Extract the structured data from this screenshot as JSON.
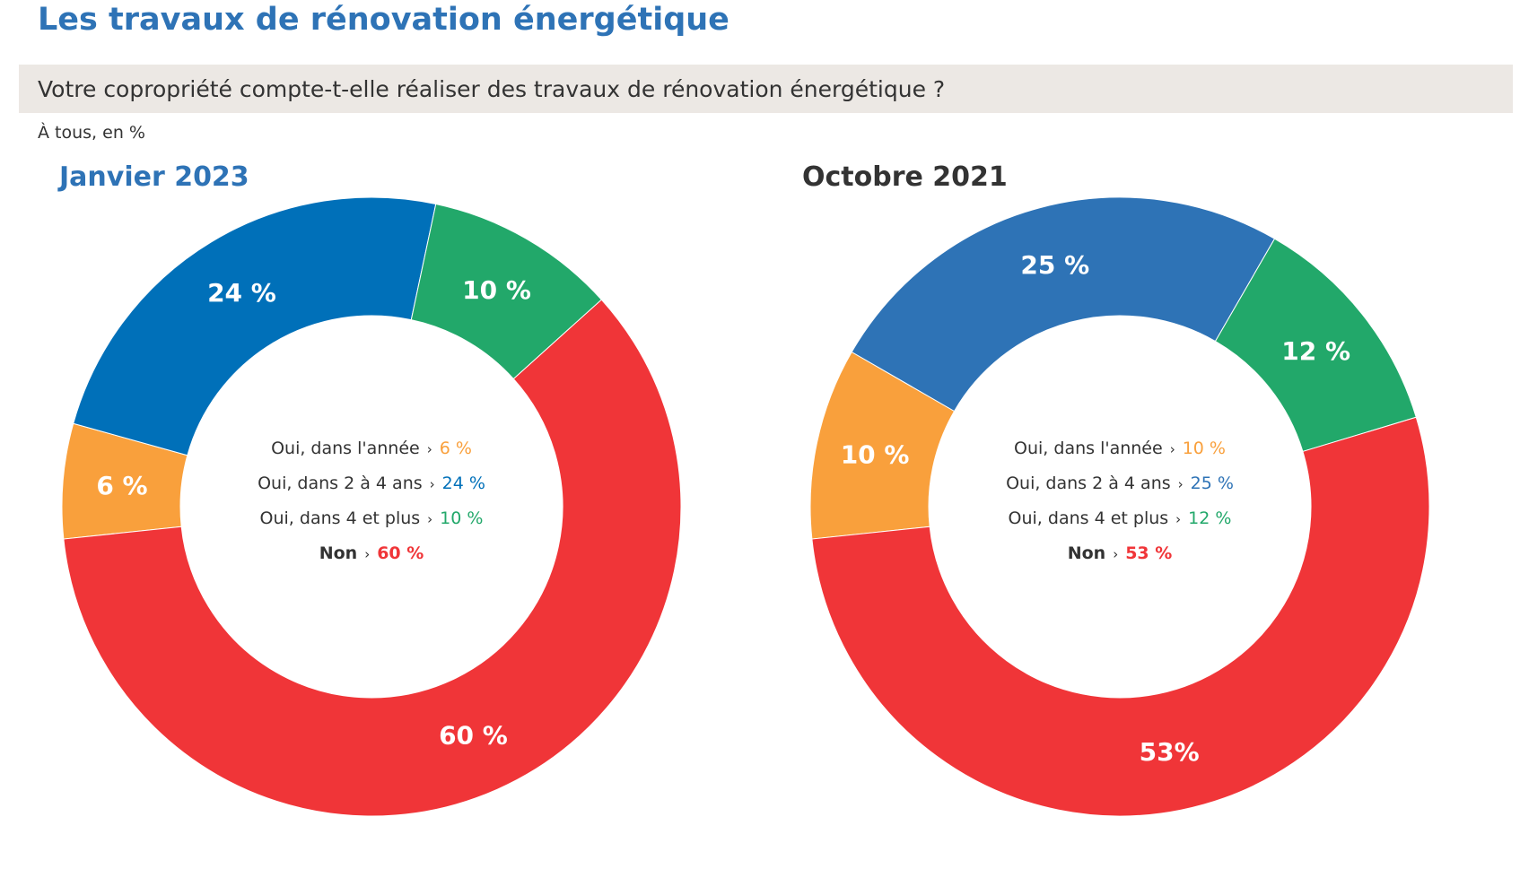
{
  "title": "Les travaux de rénovation énergétique",
  "question": "Votre copropriété compte-t-elle réaliser des travaux de rénovation énergétique ?",
  "base_note": "À tous, en %",
  "separator": "›",
  "colors": {
    "title": "#2e73b6",
    "question_bg": "#ece8e4",
    "annee": "#f9a03c",
    "deux_quatre_2023": "#0070b9",
    "deux_quatre_2021": "#2e73b6",
    "quatre_plus": "#22a86a",
    "non": "#f03538"
  },
  "chart_data": [
    {
      "type": "pie",
      "title": "Janvier 2023",
      "categories": [
        "Oui, dans l'année",
        "Oui, dans 2 à 4 ans",
        "Oui, dans 4 et plus",
        "Non"
      ],
      "values": [
        6,
        24,
        10,
        60
      ],
      "slice_labels": [
        "6 %",
        "24 %",
        "10 %",
        "60 %"
      ],
      "legend_values": [
        "6 %",
        "24 %",
        "10 %",
        "60 %"
      ],
      "colors": [
        "#f9a03c",
        "#0070b9",
        "#22a86a",
        "#f03538"
      ],
      "donut": true
    },
    {
      "type": "pie",
      "title": "Octobre 2021",
      "categories": [
        "Oui, dans l'année",
        "Oui, dans 2 à 4 ans",
        "Oui, dans 4 et plus",
        "Non"
      ],
      "values": [
        10,
        25,
        12,
        53
      ],
      "slice_labels": [
        "10 %",
        "25 %",
        "12 %",
        "53%"
      ],
      "legend_values": [
        "10 %",
        "25 %",
        "12 %",
        "53 %"
      ],
      "colors": [
        "#f9a03c",
        "#2e73b6",
        "#22a86a",
        "#f03538"
      ],
      "donut": true
    }
  ]
}
